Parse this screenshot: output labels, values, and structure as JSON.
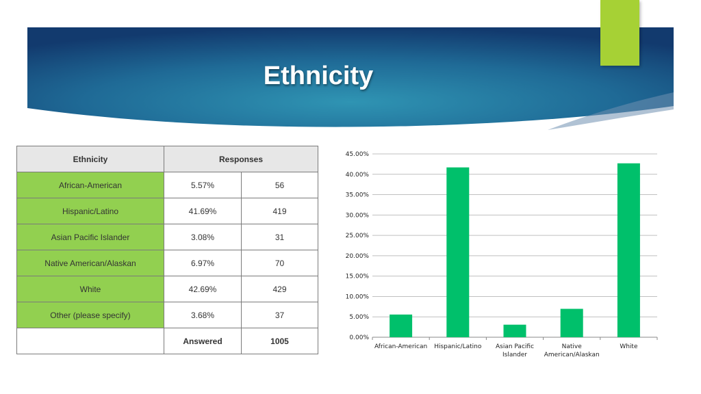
{
  "slide": {
    "title": "Ethnicity"
  },
  "table": {
    "header_ethnicity": "Ethnicity",
    "header_responses": "Responses",
    "rows": [
      {
        "ethnicity": "African-American",
        "percent": "5.57%",
        "count": "56"
      },
      {
        "ethnicity": "Hispanic/Latino",
        "percent": "41.69%",
        "count": "419"
      },
      {
        "ethnicity": "Asian Pacific Islander",
        "percent": "3.08%",
        "count": "31"
      },
      {
        "ethnicity": "Native American/Alaskan",
        "percent": "6.97%",
        "count": "70"
      },
      {
        "ethnicity": "White",
        "percent": "42.69%",
        "count": "429"
      },
      {
        "ethnicity": "Other (please specify)",
        "percent": "3.68%",
        "count": "37"
      }
    ],
    "answered_label": "Answered",
    "answered_total": "1005"
  },
  "colors": {
    "bar": "#00c06b",
    "category_cell": "#92d050",
    "accent": "#a6d135",
    "banner_dark": "#123a6e",
    "banner_light": "#2e8fb0"
  },
  "chart_data": {
    "type": "bar",
    "categories": [
      [
        "African-American"
      ],
      [
        "Hispanic/Latino"
      ],
      [
        "Asian Pacific",
        "Islander"
      ],
      [
        "Native",
        "American/Alaskan"
      ],
      [
        "White"
      ]
    ],
    "values": [
      5.57,
      41.69,
      3.08,
      6.97,
      42.69
    ],
    "yticks": [
      "0.00%",
      "5.00%",
      "10.00%",
      "15.00%",
      "20.00%",
      "25.00%",
      "30.00%",
      "35.00%",
      "40.00%",
      "45.00%"
    ],
    "ylim": [
      0,
      45
    ],
    "grid": true,
    "title": "",
    "xlabel": "",
    "ylabel": ""
  }
}
